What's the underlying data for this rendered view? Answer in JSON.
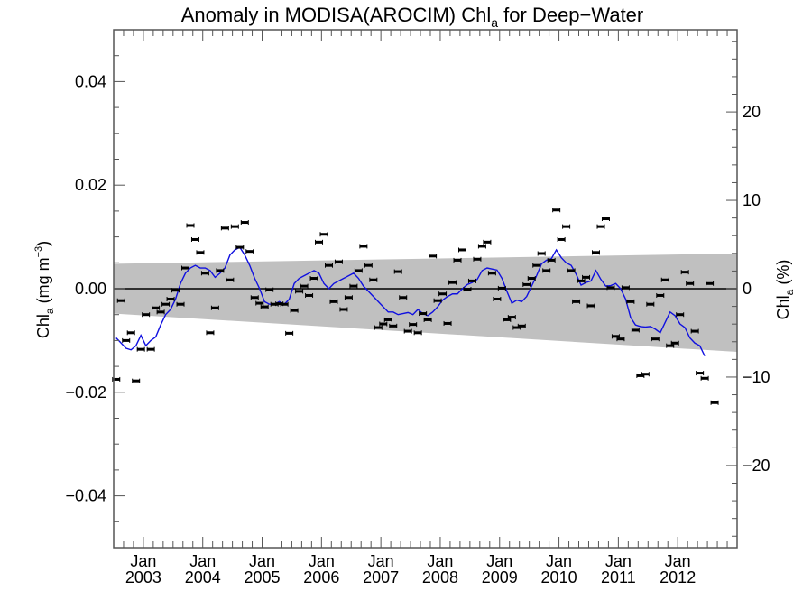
{
  "chart_data": {
    "type": "line",
    "title": "Anomaly in MODISA(AROCIM) Chl",
    "title_subscript": "a",
    "title_suffix": " for Deep−Water",
    "ylabel": {
      "main": "Chl",
      "sub": "a",
      "rest": " (mg m",
      "sup": "−3",
      "close": ")"
    },
    "y2label": {
      "main": "Chl",
      "sub": "a",
      "rest": " (%)"
    },
    "xlim": [
      2002.5,
      2013.0
    ],
    "ylim": [
      -0.05,
      0.05
    ],
    "y2lim": [
      -29.3,
      29.3
    ],
    "yticks": [
      {
        "value": 0.04,
        "label": "0.04"
      },
      {
        "value": 0.02,
        "label": "0.02"
      },
      {
        "value": 0.0,
        "label": "0.00"
      },
      {
        "value": -0.02,
        "label": "−0.02"
      },
      {
        "value": -0.04,
        "label": "−0.04"
      }
    ],
    "y2ticks": [
      {
        "value": 20,
        "label": "20"
      },
      {
        "value": 10,
        "label": "10"
      },
      {
        "value": 0,
        "label": "0"
      },
      {
        "value": -10,
        "label": "−10"
      },
      {
        "value": -20,
        "label": "−20"
      }
    ],
    "xticks": [
      {
        "value": 2003.0,
        "label1": "Jan",
        "label2": "2003"
      },
      {
        "value": 2004.0,
        "label1": "Jan",
        "label2": "2004"
      },
      {
        "value": 2005.0,
        "label1": "Jan",
        "label2": "2005"
      },
      {
        "value": 2006.0,
        "label1": "Jan",
        "label2": "2006"
      },
      {
        "value": 2007.0,
        "label1": "Jan",
        "label2": "2007"
      },
      {
        "value": 2008.0,
        "label1": "Jan",
        "label2": "2008"
      },
      {
        "value": 2009.0,
        "label1": "Jan",
        "label2": "2009"
      },
      {
        "value": 2010.0,
        "label1": "Jan",
        "label2": "2010"
      },
      {
        "value": 2011.0,
        "label1": "Jan",
        "label2": "2011"
      },
      {
        "value": 2012.0,
        "label1": "Jan",
        "label2": "2012"
      }
    ],
    "band": {
      "name": "uncertainty envelope",
      "color": "#c0c0c0",
      "upper": [
        [
          2002.5,
          0.0048
        ],
        [
          2013.0,
          0.0068
        ]
      ],
      "lower": [
        [
          2002.5,
          -0.0048
        ],
        [
          2013.0,
          -0.0122
        ]
      ]
    },
    "zero_line": 0.0,
    "series": [
      {
        "name": "monthly anomaly",
        "kind": "points_with_errorbars",
        "color": "#000000",
        "x_start": 2002.542,
        "x_step": 0.0833,
        "values": [
          -0.0175,
          -0.0023,
          -0.01,
          -0.0085,
          -0.0178,
          -0.0117,
          -0.005,
          -0.0117,
          -0.0037,
          -0.0045,
          -0.003,
          -0.002,
          -0.0003,
          -0.003,
          0.004,
          0.0122,
          0.0095,
          0.007,
          0.003,
          -0.0085,
          -0.0037,
          0.0035,
          0.0117,
          0.0017,
          0.012,
          0.008,
          0.0128,
          0.0072,
          -0.0017,
          -0.0028,
          -0.0035,
          -0.0002,
          -0.003,
          -0.0029,
          -0.003,
          -0.0086,
          -0.0042,
          -0.0005,
          0.0005,
          -0.0013,
          0.002,
          0.009,
          0.0105,
          0.0045,
          -0.0025,
          0.0052,
          -0.004,
          -0.0017,
          0.0005,
          0.0035,
          0.0082,
          0.0045,
          0.0017,
          -0.0075,
          -0.0068,
          -0.006,
          -0.0072,
          0.0033,
          -0.0017,
          -0.0082,
          -0.0069,
          -0.0085,
          -0.0048,
          -0.006,
          0.0063,
          -0.0023,
          -0.001,
          -0.0067,
          0.0012,
          0.0055,
          0.0075,
          -0.0001,
          0.0015,
          0.0057,
          0.0082,
          0.009,
          0.003,
          -0.002,
          0.0001,
          -0.006,
          -0.0055,
          -0.0075,
          -0.0072,
          0.0008,
          0.002,
          0.0045,
          0.0068,
          0.0035,
          0.0055,
          0.0152,
          0.0095,
          0.012,
          0.0035,
          -0.0025,
          0.0015,
          0.0022,
          -0.0033,
          0.007,
          0.012,
          0.0135,
          0.0002,
          -0.0092,
          -0.0097,
          0.0002,
          -0.0025,
          -0.008,
          -0.0168,
          -0.0165,
          -0.003,
          -0.0097,
          -0.0013,
          0.0017,
          -0.011,
          -0.0105,
          -0.005,
          0.0032,
          0.001,
          -0.0082,
          -0.0163,
          -0.0173,
          0.001,
          -0.022
        ]
      },
      {
        "name": "running mean",
        "kind": "line",
        "color": "#1010e0",
        "x_start": 2002.542,
        "x_step": 0.0833,
        "values": [
          -0.0095,
          -0.0105,
          -0.0115,
          -0.0118,
          -0.011,
          -0.009,
          -0.011,
          -0.01,
          -0.0093,
          -0.007,
          -0.005,
          -0.004,
          -0.002,
          0.001,
          0.003,
          0.004,
          0.0045,
          0.004,
          0.004,
          0.0035,
          0.0022,
          0.003,
          0.004,
          0.0065,
          0.0075,
          0.008,
          0.0065,
          0.0045,
          0.002,
          0.0,
          -0.0025,
          -0.003,
          -0.003,
          -0.0025,
          -0.003,
          -0.002,
          0.001,
          0.002,
          0.0025,
          0.003,
          0.0035,
          0.003,
          0.001,
          0.0,
          0.001,
          0.0015,
          0.002,
          0.0025,
          0.003,
          0.002,
          0.0005,
          -0.0005,
          -0.0015,
          -0.0025,
          -0.0035,
          -0.0045,
          -0.0045,
          -0.005,
          -0.0048,
          -0.0046,
          -0.005,
          -0.004,
          -0.0048,
          -0.0052,
          -0.0045,
          -0.0035,
          -0.0022,
          -0.0015,
          -0.001,
          -0.001,
          0.0,
          0.0008,
          0.0012,
          0.0018,
          0.0035,
          0.004,
          0.0038,
          0.0036,
          0.002,
          -0.0005,
          -0.0028,
          -0.0022,
          -0.0025,
          -0.0015,
          0.0005,
          0.0025,
          0.0048,
          0.0055,
          0.0058,
          0.0075,
          0.006,
          0.005,
          0.0045,
          0.0028,
          0.0007,
          0.0012,
          0.0015,
          0.0035,
          0.0018,
          0.0005,
          0.0006,
          0.001,
          0.0,
          -0.002,
          -0.0055,
          -0.007,
          -0.0073,
          -0.0074,
          -0.0073,
          -0.0078,
          -0.0085,
          -0.0065,
          -0.0045,
          -0.0052,
          -0.0068,
          -0.0075,
          -0.0095,
          -0.0105,
          -0.011,
          -0.013
        ]
      }
    ],
    "grid": false,
    "legend": "none"
  }
}
